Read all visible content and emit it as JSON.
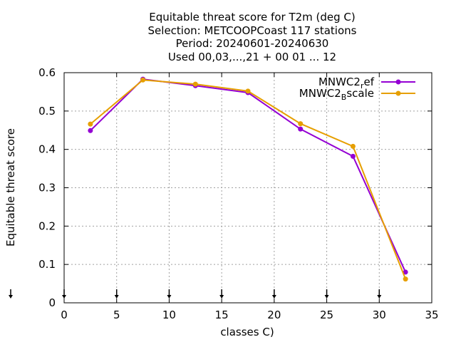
{
  "colors": {
    "background": "#ffffff",
    "grid": "#a0a0a0",
    "axis": "#000000",
    "series_1": "#9400d3",
    "series_2": "#e69f00"
  },
  "chart_data": {
    "type": "line",
    "title_lines": [
      "Equitable threat score  for T2m (deg C)",
      "Selection: METCOOPCoast    117 stations",
      "Period: 20240601-20240630",
      "Used 00,03,...,21 + 00 01 ... 12"
    ],
    "xlabel": "classes C)",
    "ylabel": "Equitable threat score",
    "xlim": [
      0,
      35
    ],
    "ylim": [
      0,
      0.6
    ],
    "x_ticks": [
      "0",
      "5",
      "10",
      "15",
      "20",
      "25",
      "30",
      "35"
    ],
    "y_ticks": [
      "0",
      "0.1",
      "0.2",
      "0.3",
      "0.4",
      "0.5",
      "0.6"
    ],
    "grid": true,
    "legend_position": "top-right",
    "x": [
      2.5,
      7.5,
      12.5,
      17.5,
      22.5,
      27.5,
      32.5
    ],
    "series": [
      {
        "name": "MNWC2",
        "name_sub": "r",
        "name_rest": "ef",
        "color": "#9400d3",
        "values": [
          0.449,
          0.583,
          0.566,
          0.548,
          0.453,
          0.382,
          0.08
        ]
      },
      {
        "name": "MNWC2",
        "name_sub": "B",
        "name_rest": "scale",
        "color": "#e69f00",
        "values": [
          0.466,
          0.581,
          0.57,
          0.552,
          0.467,
          0.408,
          0.062
        ]
      }
    ],
    "bottom_markers_x": [
      0,
      5,
      10,
      15,
      20,
      25,
      30
    ]
  }
}
